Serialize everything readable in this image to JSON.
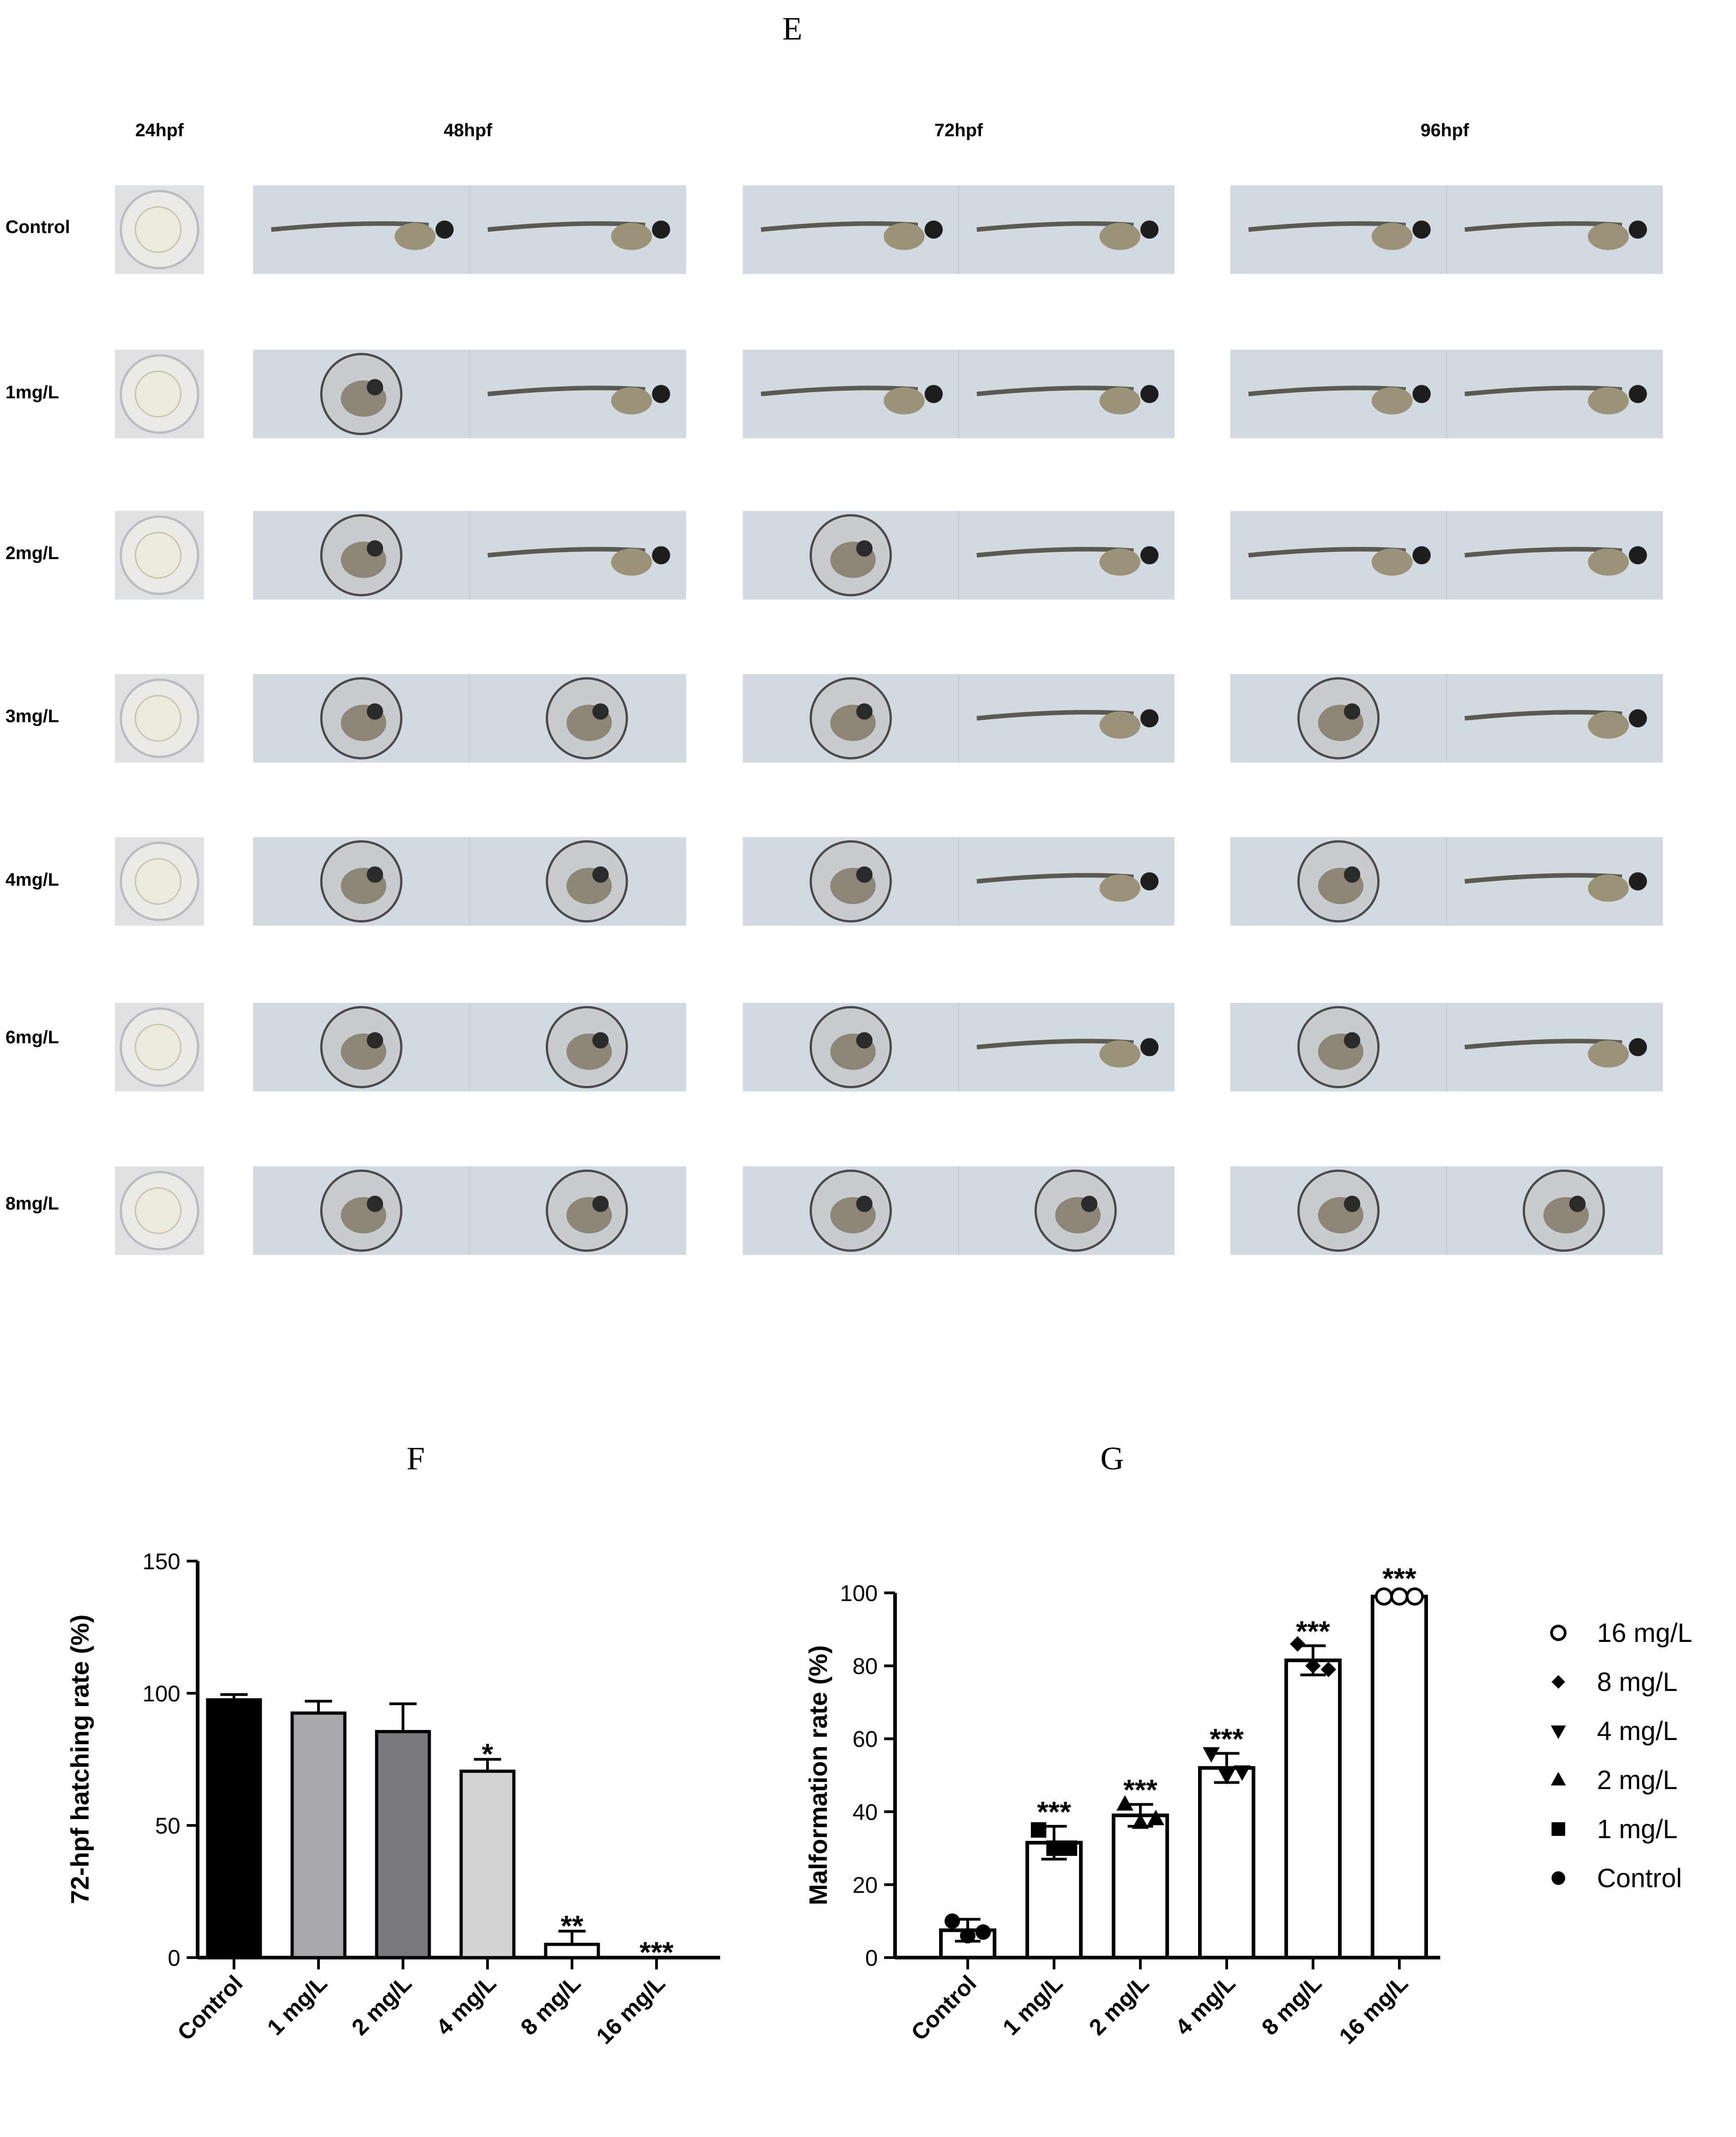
{
  "panel_labels": {
    "e": "E",
    "f": "F",
    "g": "G"
  },
  "stage_headers": [
    "24hpf",
    "48hpf",
    "72hpf",
    "96hpf"
  ],
  "row_labels": [
    "Control",
    "1mg/L",
    "2mg/L",
    "3mg/L",
    "4mg/L",
    "6mg/L",
    "8mg/L"
  ],
  "colors": {
    "control_bar": "#000000",
    "bar_1mg": "#a8a8ac",
    "bar_2mg": "#7a7a7e",
    "bar_4mg": "#d4d4d6",
    "micrograph_bg": "#d3d9e0",
    "egg": "#ede9dc"
  },
  "chart_data": [
    {
      "type": "bar",
      "categories": [
        "Control",
        "1 mg/L",
        "2 mg/L",
        "4 mg/L",
        "8 mg/L",
        "16 mg/L"
      ],
      "values": [
        97.5,
        92.5,
        85.5,
        70.5,
        5,
        0
      ],
      "errors": [
        2,
        4.5,
        10.5,
        4.5,
        5,
        0
      ],
      "significance": [
        "",
        "",
        "",
        "*",
        "**",
        "***"
      ],
      "ylabel": "72-hpf hatching rate (%)",
      "xlabel": "",
      "ylim": [
        0,
        150
      ],
      "yticks": [
        0,
        50,
        100,
        150
      ],
      "grid": false,
      "legend": "none"
    },
    {
      "type": "bar",
      "categories": [
        "Control",
        "1 mg/L",
        "2 mg/L",
        "4 mg/L",
        "8 mg/L",
        "16 mg/L"
      ],
      "values": [
        7.5,
        31.5,
        39,
        52,
        81.5,
        99
      ],
      "errors": [
        3,
        4.5,
        3,
        4,
        4,
        1
      ],
      "points": [
        [
          10,
          6,
          7
        ],
        [
          35,
          30,
          30
        ],
        [
          42,
          37,
          38
        ],
        [
          56,
          50,
          51
        ],
        [
          86,
          80,
          79
        ],
        [
          99,
          99,
          99
        ]
      ],
      "significance": [
        "",
        "***",
        "***",
        "***",
        "***",
        "***"
      ],
      "ylabel": "Malformation rate (%)",
      "xlabel": "",
      "ylim": [
        0,
        100
      ],
      "yticks": [
        0,
        20,
        40,
        60,
        80,
        100
      ],
      "grid": false,
      "legend": "right",
      "legend_entries": [
        "16 mg/L",
        "8 mg/L",
        "4 mg/L",
        "2 mg/L",
        "1 mg/L",
        "Control"
      ],
      "legend_markers": [
        "open-circle",
        "diamond",
        "triangle-down",
        "triangle-up",
        "square",
        "circle"
      ]
    }
  ]
}
